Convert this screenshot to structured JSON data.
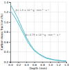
{
  "chart_data": {
    "type": "line",
    "xlabel": "Depth (mm)",
    "ylabel": "Carbon mass fraction (%)",
    "x": [
      0.0,
      0.05,
      0.1,
      0.15,
      0.2,
      0.25,
      0.3,
      0.35,
      0.4,
      0.45,
      0.5,
      0.55,
      0.6,
      0.7,
      0.8,
      0.9,
      1.0,
      1.1,
      1.2,
      1.3,
      1.4
    ],
    "series": [
      {
        "color": "#55bbcc",
        "values": [
          1.35,
          1.28,
          1.21,
          1.13,
          1.05,
          0.96,
          0.87,
          0.78,
          0.69,
          0.62,
          0.55,
          0.49,
          0.44,
          0.37,
          0.32,
          0.28,
          0.26,
          0.24,
          0.23,
          0.22,
          0.215
        ]
      },
      {
        "color": "#55bbcc",
        "values": [
          1.22,
          1.17,
          1.11,
          1.04,
          0.97,
          0.89,
          0.81,
          0.73,
          0.65,
          0.58,
          0.52,
          0.47,
          0.42,
          0.36,
          0.31,
          0.27,
          0.25,
          0.235,
          0.225,
          0.218,
          0.213
        ]
      }
    ],
    "xlim": [
      0,
      1.4
    ],
    "ylim": [
      0.2,
      1.4
    ],
    "xticks": [
      {
        "value": 0.0,
        "label": "0.0"
      },
      0.2,
      0.4,
      0.6,
      0.8,
      {
        "value": 1.0,
        "label": "1.0"
      },
      1.2,
      1.4
    ],
    "yticks": [
      0.2,
      0.4,
      0.6,
      0.8,
      {
        "value": 1.0,
        "label": "1.0"
      },
      1.2,
      1.4
    ],
    "grid": true,
    "annotations": [
      {
        "text": "β= 1.5 × 10⁻⁸ g · mm⁻² · s⁻¹",
        "x": 0.13,
        "y": 1.22
      },
      {
        "text": "β= 0.75 × 10⁻⁸ g · mm⁻² · s⁻¹",
        "x": 0.38,
        "y": 0.72
      }
    ]
  }
}
